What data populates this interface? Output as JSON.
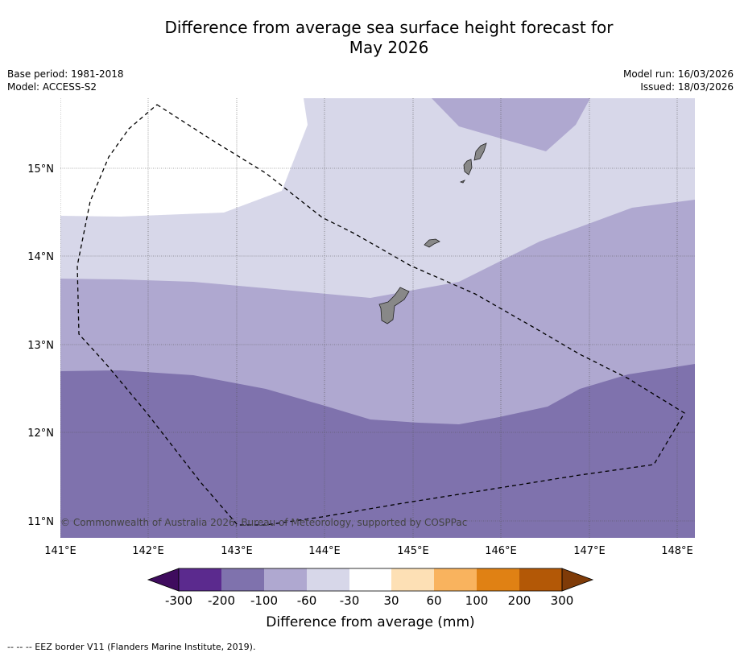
{
  "title_line1": "Difference from average sea surface height forecast for",
  "title_line2": "May 2026",
  "meta": {
    "base_period": "Base period: 1981-2018",
    "model": "Model: ACCESS-S2",
    "model_run": "Model run: 16/03/2026",
    "issued": "Issued: 18/03/2026"
  },
  "map": {
    "lat_labels": [
      "15°N",
      "14°N",
      "13°N",
      "12°N",
      "11°N"
    ],
    "lon_labels": [
      "141°E",
      "142°E",
      "143°E",
      "144°E",
      "145°E",
      "146°E",
      "147°E",
      "148°E"
    ],
    "copyright": "© Commonwealth of Australia 2026, Bureau of Meteorology, supported by COSPPac"
  },
  "colorbar": {
    "title": "Difference from average (mm)",
    "tick_labels": [
      "-300",
      "-200",
      "-100",
      "-60",
      "-30",
      "30",
      "60",
      "100",
      "200",
      "300"
    ],
    "colors": [
      "#3f0c5e",
      "#5b2a8e",
      "#7f72ad",
      "#afa8d0",
      "#d7d7e9",
      "#ffffff",
      "#fde0b5",
      "#f9b35e",
      "#e08114",
      "#b35806",
      "#7f3b08"
    ]
  },
  "footnote": "--  --  -- EEZ border V11 (Flanders Marine Institute, 2019)."
}
